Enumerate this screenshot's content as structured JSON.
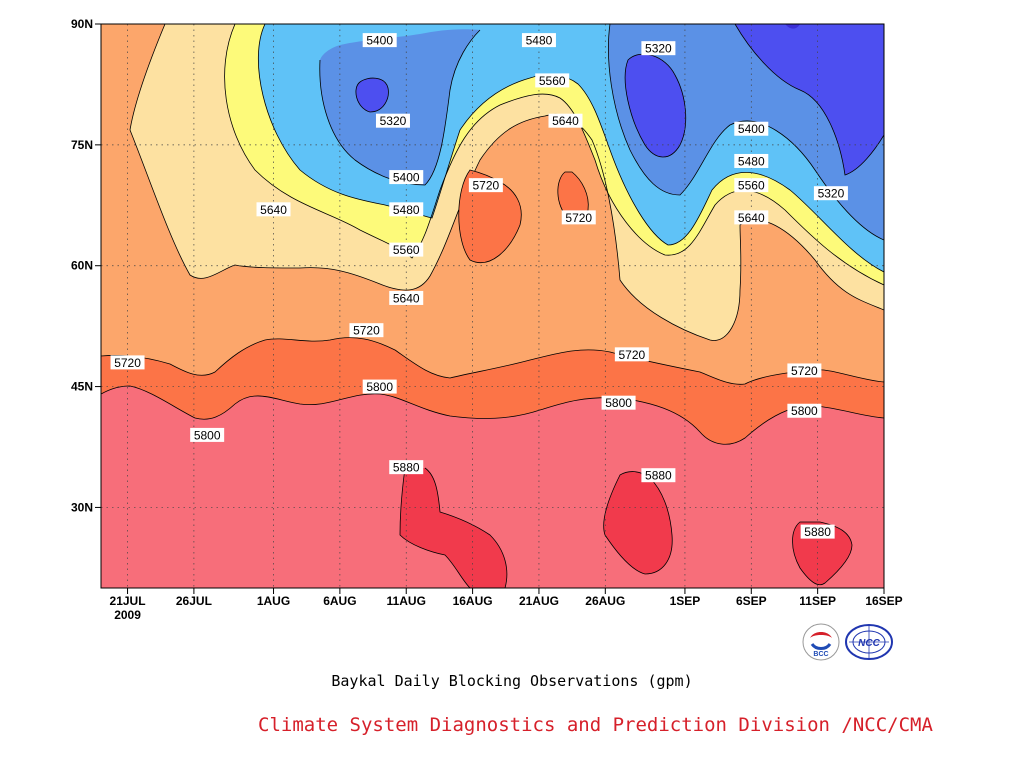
{
  "title": "Baykal Daily Blocking Observations (gpm)",
  "credit": "Climate System Diagnostics and Prediction Division /NCC/CMA",
  "logos": {
    "left": {
      "icon": "bcc-logo",
      "text": "BCC"
    },
    "right": {
      "icon": "ncc-logo",
      "text": "NCC"
    }
  },
  "chart_data": {
    "type": "contour",
    "units": "gpm",
    "x_axis": {
      "kind": "date",
      "start": "2009-07-19",
      "end": "2009-09-16",
      "ticks": [
        {
          "date": "2009-07-21",
          "label": "21JUL",
          "sublabel": "2009"
        },
        {
          "date": "2009-07-26",
          "label": "26JUL"
        },
        {
          "date": "2009-08-01",
          "label": "1AUG"
        },
        {
          "date": "2009-08-06",
          "label": "6AUG"
        },
        {
          "date": "2009-08-11",
          "label": "11AUG"
        },
        {
          "date": "2009-08-16",
          "label": "16AUG"
        },
        {
          "date": "2009-08-21",
          "label": "21AUG"
        },
        {
          "date": "2009-08-26",
          "label": "26AUG"
        },
        {
          "date": "2009-09-01",
          "label": "1SEP"
        },
        {
          "date": "2009-09-06",
          "label": "6SEP"
        },
        {
          "date": "2009-09-11",
          "label": "11SEP"
        },
        {
          "date": "2009-09-16",
          "label": "16SEP"
        }
      ]
    },
    "y_axis": {
      "kind": "latitude",
      "range": [
        20,
        90
      ],
      "ticks": [
        {
          "value": 30,
          "label": "30N"
        },
        {
          "value": 45,
          "label": "45N"
        },
        {
          "value": 60,
          "label": "60N"
        },
        {
          "value": 75,
          "label": "75N"
        },
        {
          "value": 90,
          "label": "90N"
        }
      ]
    },
    "grid": "dotted",
    "levels": [
      5320,
      5400,
      5480,
      5560,
      5640,
      5720,
      5800,
      5880
    ],
    "fill_colors": {
      "below_5320": "#3b2fd6",
      "5320_5400": "#4d4ff0",
      "5400_5480": "#5b91e6",
      "5480_5560": "#5fc2f7",
      "5560_5640": "#fdfa7a",
      "5640_5720": "#fde1a1",
      "5720_5800": "#fca66b",
      "5800_5880": "#fc7447",
      "5880_above": "#f76e7a",
      "max": "#f13a4c"
    },
    "contour_labels": [
      {
        "value": "5400",
        "date": "2009-08-09",
        "lat": 88
      },
      {
        "value": "5320",
        "date": "2009-08-10",
        "lat": 78
      },
      {
        "value": "5400",
        "date": "2009-08-11",
        "lat": 71
      },
      {
        "value": "5480",
        "date": "2009-08-11",
        "lat": 67
      },
      {
        "value": "5560",
        "date": "2009-08-11",
        "lat": 62
      },
      {
        "value": "5640",
        "date": "2009-08-11",
        "lat": 56
      },
      {
        "value": "5480",
        "date": "2009-08-21",
        "lat": 88
      },
      {
        "value": "5560",
        "date": "2009-08-22",
        "lat": 83
      },
      {
        "value": "5640",
        "date": "2009-08-23",
        "lat": 78
      },
      {
        "value": "5720",
        "date": "2009-08-17",
        "lat": 70
      },
      {
        "value": "5720",
        "date": "2009-08-24",
        "lat": 66
      },
      {
        "value": "5320",
        "date": "2009-08-30",
        "lat": 87
      },
      {
        "value": "5400",
        "date": "2009-09-06",
        "lat": 77
      },
      {
        "value": "5480",
        "date": "2009-09-06",
        "lat": 73
      },
      {
        "value": "5560",
        "date": "2009-09-06",
        "lat": 70
      },
      {
        "value": "5640",
        "date": "2009-09-06",
        "lat": 66
      },
      {
        "value": "5320",
        "date": "2009-09-12",
        "lat": 69
      },
      {
        "value": "5640",
        "date": "2009-08-01",
        "lat": 67
      },
      {
        "value": "5720",
        "date": "2009-07-21",
        "lat": 48
      },
      {
        "value": "5720",
        "date": "2009-08-08",
        "lat": 52
      },
      {
        "value": "5720",
        "date": "2009-08-28",
        "lat": 49
      },
      {
        "value": "5720",
        "date": "2009-09-10",
        "lat": 47
      },
      {
        "value": "5800",
        "date": "2009-07-27",
        "lat": 39
      },
      {
        "value": "5800",
        "date": "2009-08-09",
        "lat": 45
      },
      {
        "value": "5800",
        "date": "2009-08-27",
        "lat": 43
      },
      {
        "value": "5800",
        "date": "2009-09-10",
        "lat": 42
      },
      {
        "value": "5880",
        "date": "2009-08-11",
        "lat": 35
      },
      {
        "value": "5880",
        "date": "2009-08-30",
        "lat": 34
      },
      {
        "value": "5880",
        "date": "2009-09-11",
        "lat": 27
      }
    ]
  }
}
